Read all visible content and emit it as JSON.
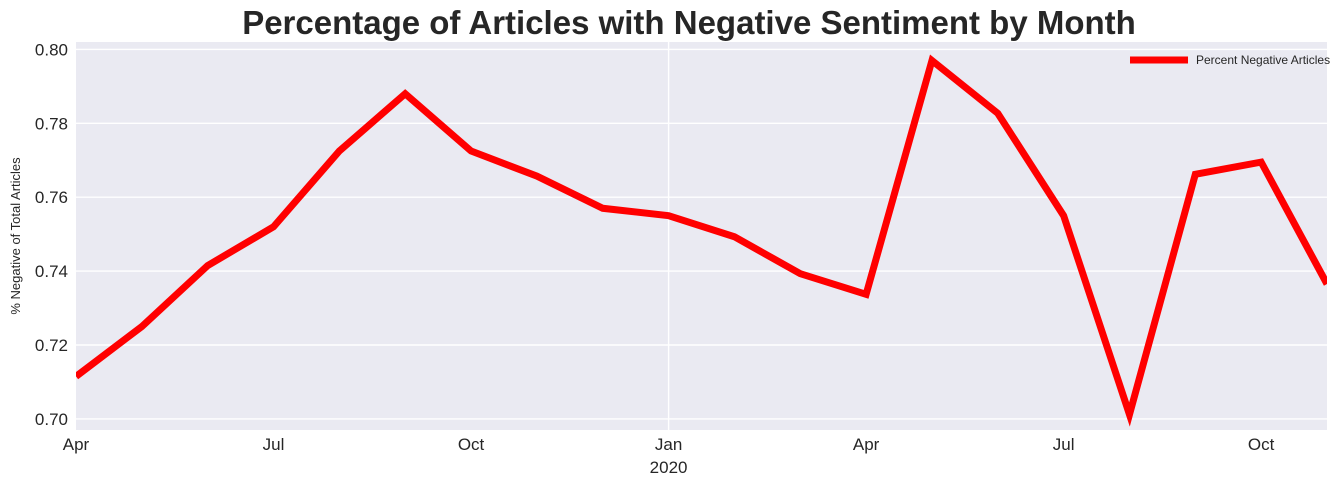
{
  "chart_data": {
    "type": "line",
    "title": "Percentage of Articles with Negative Sentiment by Month",
    "xlabel": "",
    "ylabel": "% Negative of Total Articles",
    "x": [
      "2019-04",
      "2019-05",
      "2019-06",
      "2019-07",
      "2019-08",
      "2019-09",
      "2019-10",
      "2019-11",
      "2019-12",
      "2020-01",
      "2020-02",
      "2020-03",
      "2020-04",
      "2020-05",
      "2020-06",
      "2020-07",
      "2020-08",
      "2020-09",
      "2020-10",
      "2020-11"
    ],
    "series": [
      {
        "name": "Percent Negative Articles",
        "color": "#ff0000",
        "values": [
          0.7115,
          0.725,
          0.7415,
          0.752,
          0.7725,
          0.788,
          0.7725,
          0.7657,
          0.757,
          0.755,
          0.7493,
          0.7393,
          0.7337,
          0.797,
          0.7827,
          0.755,
          0.7012,
          0.7662,
          0.7695,
          0.7365
        ]
      }
    ],
    "ylim": [
      0.697,
      0.802
    ],
    "xlim": [
      "2019-04",
      "2020-11"
    ],
    "yticks": [
      0.7,
      0.72,
      0.74,
      0.76,
      0.78,
      0.8
    ],
    "ytick_labels": [
      "0.70",
      "0.72",
      "0.74",
      "0.76",
      "0.78",
      "0.80"
    ],
    "xticks": [
      "2019-04",
      "2019-07",
      "2019-10",
      "2020-01",
      "2020-04",
      "2020-07",
      "2020-10"
    ],
    "xtick_labels": [
      "Apr",
      "Jul",
      "Oct",
      "Jan",
      "Apr",
      "Jul",
      "Oct"
    ],
    "xtick_year": "2020",
    "grid": true,
    "legend_position": "top-right",
    "background_color": "#eaeaf2",
    "grid_color": "#ffffff"
  }
}
